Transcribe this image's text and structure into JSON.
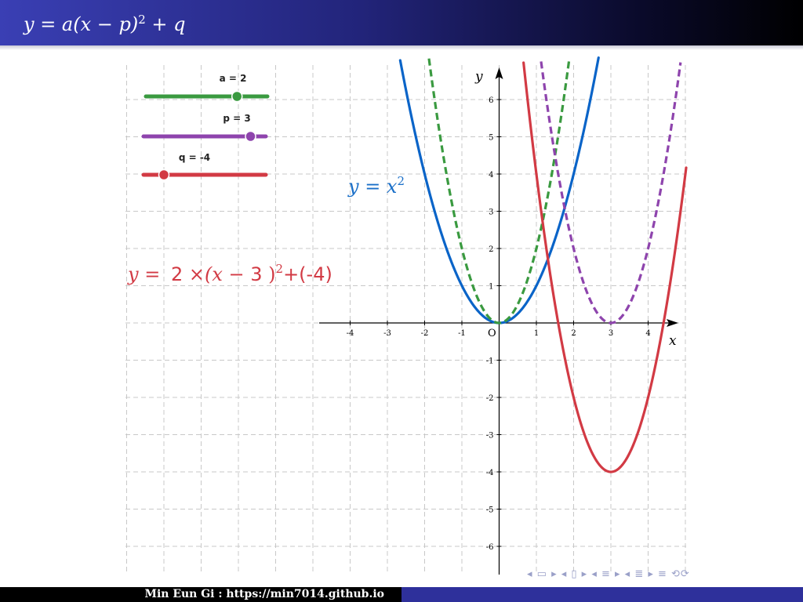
{
  "title": {
    "lhs": "y = a(x − p)",
    "exp": "2",
    "tail": " + q"
  },
  "sliders": [
    {
      "label": "a = 2",
      "value": 2,
      "min": -4,
      "max": 4,
      "color": "#3a9a40"
    },
    {
      "label": "p = 3",
      "value": 3,
      "min": -4,
      "max": 4,
      "color": "#8e44ad"
    },
    {
      "label": "q = -4",
      "value": -4,
      "min": -6,
      "max": 6,
      "color": "#d23a44"
    }
  ],
  "labels": {
    "parabola_name": "y = x",
    "parabola_exp": "2",
    "eq_prefix": "y = ",
    "eq_a": "2",
    "eq_mid": " ×(x − ",
    "eq_p": "3",
    "eq_close": " )",
    "eq_exp": "2",
    "eq_q": "+(-4)",
    "x_axis": "x",
    "y_axis": "y",
    "origin": "O"
  },
  "chart_data": {
    "type": "line",
    "xlim": [
      -4.8,
      5.0
    ],
    "ylim": [
      -6.6,
      6.8
    ],
    "grid": true,
    "x_ticks": [
      -4,
      -3,
      -2,
      -1,
      1,
      2,
      3,
      4
    ],
    "y_ticks": [
      -6,
      -5,
      -4,
      -3,
      -2,
      -1,
      1,
      2,
      3,
      4,
      5,
      6
    ],
    "series": [
      {
        "formula": "y = x^2",
        "a": 1,
        "p": 0,
        "q": 0,
        "style": "solid",
        "color": "#0a64c8"
      },
      {
        "formula": "y = 2x^2",
        "a": 2,
        "p": 0,
        "q": 0,
        "style": "dashed",
        "color": "#3a9a40"
      },
      {
        "formula": "y = 2(x-3)^2",
        "a": 2,
        "p": 3,
        "q": 0,
        "style": "dashed",
        "color": "#8e44ad"
      },
      {
        "formula": "y = 2(x-3)^2 - 4",
        "a": 2,
        "p": 3,
        "q": -4,
        "style": "solid",
        "color": "#d23a44"
      }
    ]
  },
  "footer": {
    "text": "Min Eun Gi : https://min7014.github.io"
  },
  "nav": {
    "glyphs": "◂ ▭ ▸ ◂ ▯ ▸ ◂ ≡ ▸ ◂ ≣ ▸  ≡  ⟲⟳"
  }
}
